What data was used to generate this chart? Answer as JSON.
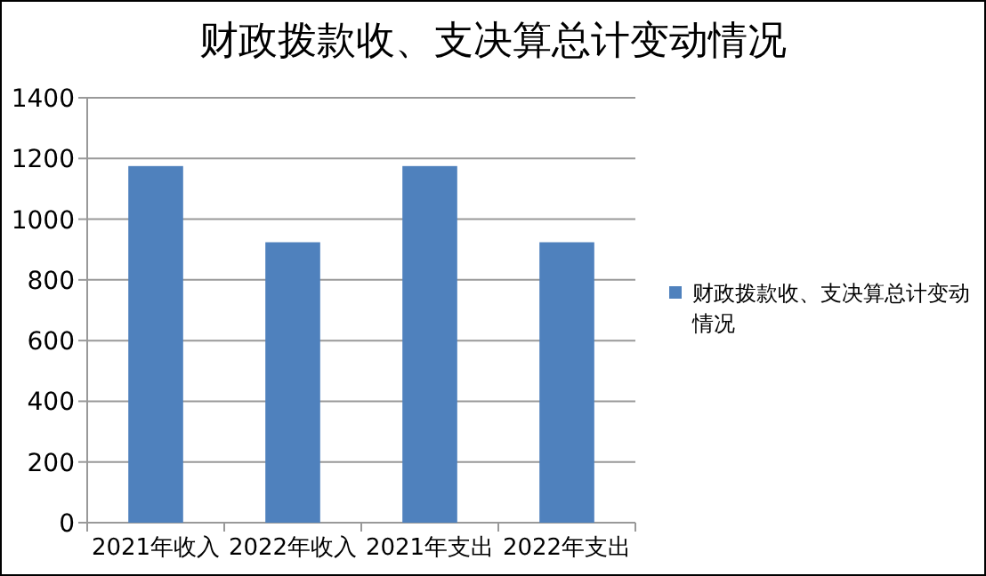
{
  "chart_data": {
    "type": "bar",
    "title": "财政拨款收、支决算总计变动情况",
    "categories": [
      "2021年收入",
      "2022年收入",
      "2021年支出",
      "2022年支出"
    ],
    "series": [
      {
        "name": "财政拨款收、支决算总计变动情况",
        "color": "#4f81bd",
        "values": [
          1175,
          924,
          1175,
          924
        ]
      }
    ],
    "ylim": [
      0,
      1400
    ],
    "yticks": [
      0,
      200,
      400,
      600,
      800,
      1000,
      1200,
      1400
    ],
    "grid": "y",
    "legend": "right"
  }
}
